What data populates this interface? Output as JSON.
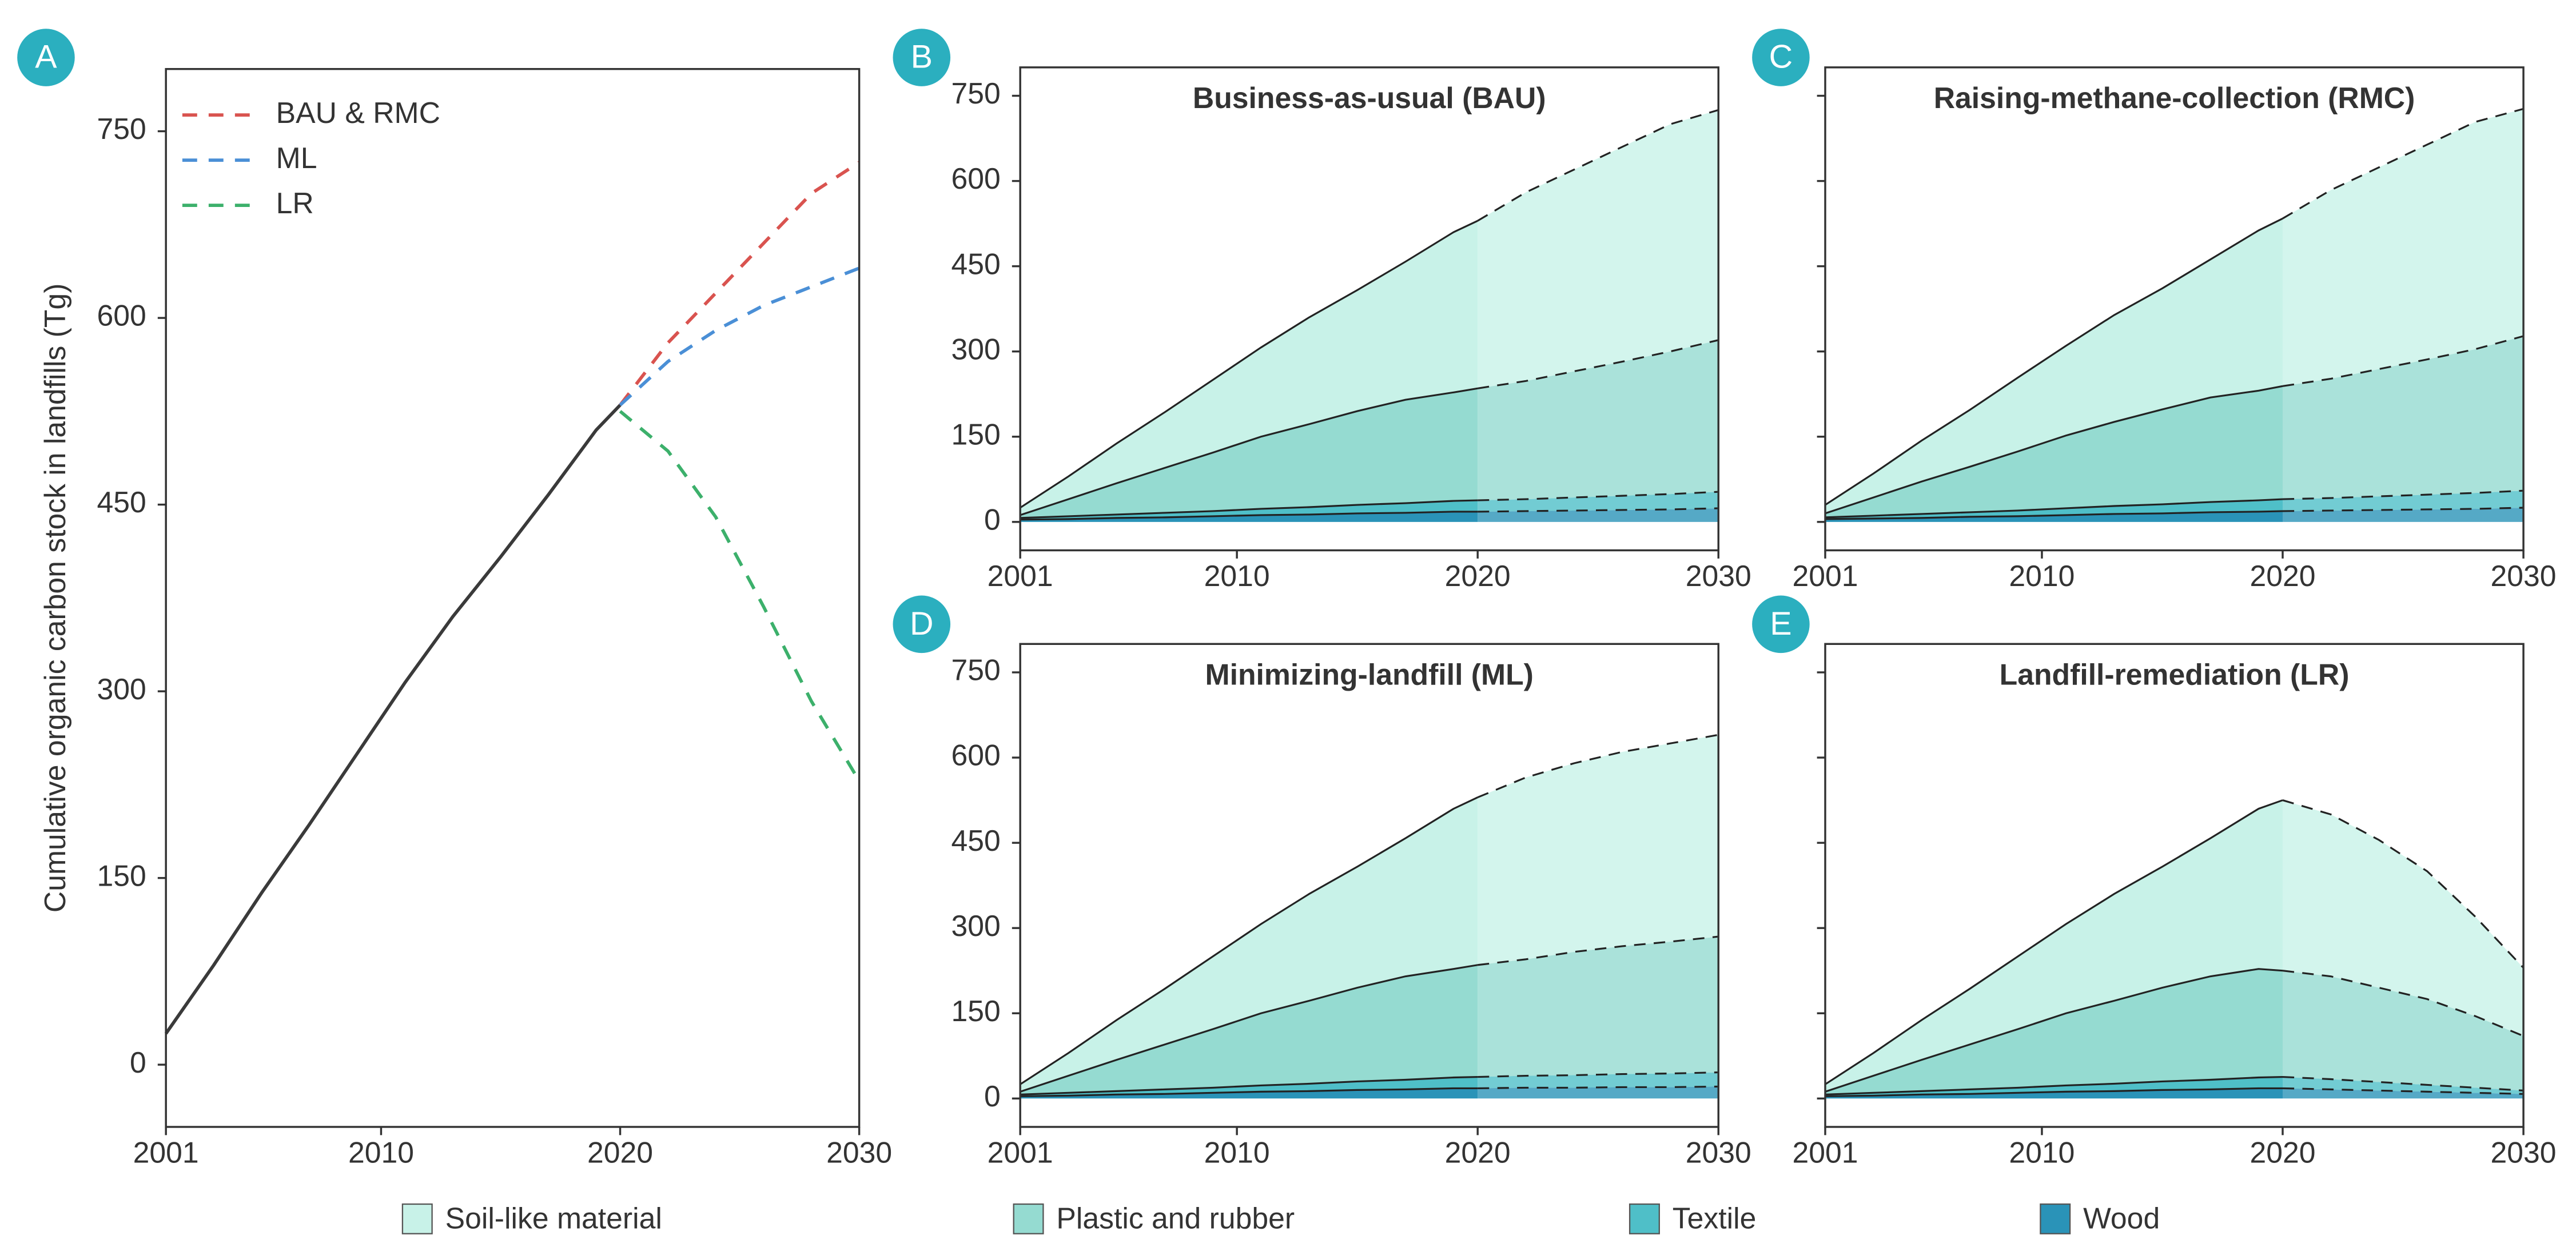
{
  "chart_data": [
    {
      "type": "line",
      "label": "A",
      "ylabel": "Cumulative organic carbon stock in landfills (Tg)",
      "x": [
        2001,
        2003,
        2005,
        2007,
        2009,
        2011,
        2013,
        2015,
        2017,
        2019,
        2020,
        2022,
        2024,
        2026,
        2028,
        2030
      ],
      "xlim": [
        2001,
        2030
      ],
      "xticks": [
        2001,
        2010,
        2020,
        2030
      ],
      "ylim": [
        -50,
        800
      ],
      "yticks": [
        0,
        150,
        300,
        450,
        600,
        750
      ],
      "legend": "upper left",
      "series": [
        {
          "color": "#3a3a3a",
          "linestyle": "solid",
          "values": [
            25,
            80,
            138,
            193,
            250,
            307,
            360,
            408,
            458,
            510,
            530,
            null,
            null,
            null,
            null,
            null
          ]
        },
        {
          "name": "BAU & RMC",
          "color": "#d9534f",
          "linestyle": "dashed",
          "values": [
            null,
            null,
            null,
            null,
            null,
            null,
            null,
            null,
            null,
            null,
            530,
            580,
            620,
            660,
            700,
            725
          ]
        },
        {
          "name": "ML",
          "color": "#4a8fd6",
          "linestyle": "dashed",
          "values": [
            null,
            null,
            null,
            null,
            null,
            null,
            null,
            null,
            null,
            null,
            530,
            565,
            590,
            610,
            625,
            640
          ]
        },
        {
          "name": "LR",
          "color": "#3cb06b",
          "linestyle": "dashed",
          "values": [
            null,
            null,
            null,
            null,
            null,
            null,
            null,
            null,
            null,
            null,
            525,
            493,
            440,
            368,
            292,
            228
          ]
        }
      ]
    },
    {
      "type": "stacked_area",
      "label": "B",
      "title": "Business-as-usual (BAU)",
      "x": [
        2001,
        2003,
        2005,
        2007,
        2009,
        2011,
        2013,
        2015,
        2017,
        2019,
        2020,
        2022,
        2024,
        2026,
        2028,
        2030
      ],
      "xlim": [
        2001,
        2030
      ],
      "xticks": [
        2001,
        2010,
        2020,
        2030
      ],
      "ylim": [
        -50,
        800
      ],
      "yticks": [
        0,
        150,
        300,
        450,
        600,
        750
      ],
      "dashed_from": 2020,
      "series": [
        {
          "name": "Wood",
          "color": "#2a93b8",
          "values": [
            4,
            5,
            7,
            8,
            10,
            12,
            13,
            15,
            16,
            18,
            18,
            19,
            20,
            21,
            22,
            24
          ]
        },
        {
          "name": "Textile",
          "color": "#4fbfc8",
          "values": [
            3,
            5,
            6,
            8,
            9,
            11,
            13,
            15,
            17,
            19,
            20,
            21,
            23,
            25,
            27,
            29
          ]
        },
        {
          "name": "Plastic and rubber",
          "color": "#95dbd1",
          "values": [
            5,
            30,
            55,
            79,
            103,
            127,
            146,
            165,
            182,
            191,
            197,
            208,
            222,
            236,
            251,
            267
          ]
        },
        {
          "name": "Soil-like material",
          "color": "#c8f2e8",
          "values": [
            13,
            40,
            70,
            98,
            128,
            157,
            188,
            213,
            243,
            282,
            295,
            332,
            355,
            378,
            400,
            405
          ]
        }
      ]
    },
    {
      "type": "stacked_area",
      "label": "C",
      "title": "Raising-methane-collection (RMC)",
      "x": [
        2001,
        2003,
        2005,
        2007,
        2009,
        2011,
        2013,
        2015,
        2017,
        2019,
        2020,
        2022,
        2024,
        2026,
        2028,
        2030
      ],
      "xlim": [
        2001,
        2030
      ],
      "xticks": [
        2001,
        2010,
        2020,
        2030
      ],
      "ylim": [
        -50,
        800
      ],
      "yticks": [
        0,
        150,
        300,
        450,
        600,
        750
      ],
      "show_ytick_labels": false,
      "dashed_from": 2020,
      "series": [
        {
          "color": "#2a93b8",
          "values": [
            5,
            6,
            7,
            9,
            10,
            12,
            14,
            15,
            17,
            18,
            19,
            20,
            21,
            22,
            23,
            25
          ]
        },
        {
          "color": "#4fbfc8",
          "values": [
            3,
            5,
            7,
            8,
            10,
            12,
            14,
            16,
            18,
            20,
            21,
            22,
            24,
            26,
            28,
            30
          ]
        },
        {
          "color": "#95dbd1",
          "values": [
            7,
            32,
            57,
            80,
            104,
            128,
            148,
            167,
            184,
            193,
            199,
            210,
            224,
            238,
            253,
            272
          ]
        },
        {
          "color": "#c8f2e8",
          "values": [
            15,
            42,
            72,
            100,
            130,
            158,
            188,
            213,
            243,
            282,
            295,
            332,
            355,
            378,
            400,
            400
          ]
        }
      ]
    },
    {
      "type": "stacked_area",
      "label": "D",
      "title": "Minimizing-landfill (ML)",
      "x": [
        2001,
        2003,
        2005,
        2007,
        2009,
        2011,
        2013,
        2015,
        2017,
        2019,
        2020,
        2022,
        2024,
        2026,
        2028,
        2030
      ],
      "xlim": [
        2001,
        2030
      ],
      "xticks": [
        2001,
        2010,
        2020,
        2030
      ],
      "ylim": [
        -50,
        800
      ],
      "yticks": [
        0,
        150,
        300,
        450,
        600,
        750
      ],
      "dashed_from": 2020,
      "series": [
        {
          "color": "#2a93b8",
          "values": [
            4,
            5,
            7,
            8,
            10,
            12,
            13,
            15,
            16,
            18,
            18,
            19,
            19,
            20,
            20,
            21
          ]
        },
        {
          "color": "#4fbfc8",
          "values": [
            3,
            5,
            6,
            8,
            9,
            11,
            13,
            15,
            17,
            19,
            20,
            21,
            22,
            23,
            24,
            25
          ]
        },
        {
          "color": "#95dbd1",
          "values": [
            5,
            30,
            55,
            79,
            103,
            127,
            146,
            165,
            182,
            191,
            197,
            205,
            217,
            225,
            232,
            239
          ]
        },
        {
          "color": "#c8f2e8",
          "values": [
            13,
            40,
            70,
            98,
            128,
            157,
            188,
            213,
            243,
            282,
            295,
            320,
            332,
            342,
            349,
            355
          ]
        }
      ]
    },
    {
      "type": "stacked_area",
      "label": "E",
      "title": "Landfill-remediation (LR)",
      "x": [
        2001,
        2003,
        2005,
        2007,
        2009,
        2011,
        2013,
        2015,
        2017,
        2019,
        2020,
        2022,
        2024,
        2026,
        2028,
        2030
      ],
      "xlim": [
        2001,
        2030
      ],
      "xticks": [
        2001,
        2010,
        2020,
        2030
      ],
      "ylim": [
        -50,
        800
      ],
      "yticks": [
        0,
        150,
        300,
        450,
        600,
        750
      ],
      "show_ytick_labels": false,
      "dashed_from": 2020,
      "series": [
        {
          "color": "#2a93b8",
          "values": [
            4,
            5,
            7,
            8,
            10,
            12,
            13,
            15,
            16,
            18,
            18,
            16,
            14,
            12,
            10,
            8
          ]
        },
        {
          "color": "#4fbfc8",
          "values": [
            3,
            5,
            6,
            8,
            9,
            11,
            13,
            15,
            17,
            19,
            20,
            18,
            15,
            12,
            9,
            6
          ]
        },
        {
          "color": "#95dbd1",
          "values": [
            5,
            30,
            55,
            79,
            103,
            127,
            146,
            165,
            182,
            191,
            187,
            181,
            166,
            151,
            126,
            96
          ]
        },
        {
          "color": "#c8f2e8",
          "values": [
            13,
            40,
            70,
            98,
            128,
            157,
            188,
            213,
            243,
            282,
            300,
            285,
            260,
            225,
            175,
            120
          ]
        }
      ]
    }
  ]
}
